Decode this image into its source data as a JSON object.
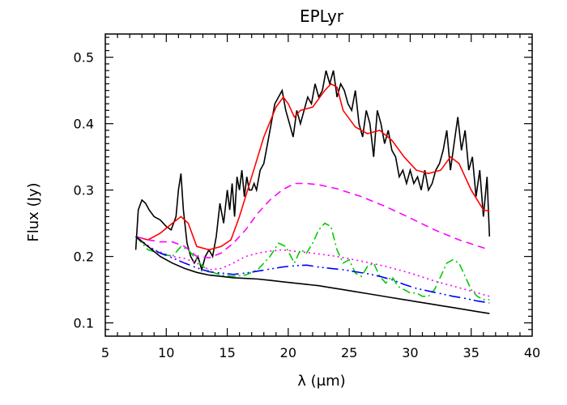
{
  "chart_data": {
    "type": "line",
    "title": "EPLyr",
    "xlabel": "λ (μm)",
    "ylabel": "Flux (Jy)",
    "xlim": [
      5,
      40
    ],
    "ylim": [
      0.08,
      0.535
    ],
    "x_ticks": [
      5,
      10,
      15,
      20,
      25,
      30,
      35,
      40
    ],
    "y_ticks": [
      0.1,
      0.2,
      0.3,
      0.4,
      0.5
    ],
    "x_tick_labels": [
      "5",
      "10",
      "15",
      "20",
      "25",
      "30",
      "35",
      "40"
    ],
    "y_tick_labels": [
      "0.1",
      "0.2",
      "0.3",
      "0.4",
      "0.5"
    ],
    "grid": false,
    "legend": "none",
    "series": [
      {
        "color": "#000000",
        "dash": "solid",
        "x": [
          7.5,
          7.7,
          8.0,
          8.3,
          8.6,
          9.0,
          9.5,
          10.0,
          10.4,
          10.8,
          11.0,
          11.2,
          11.4,
          11.7,
          12.0,
          12.3,
          12.6,
          12.9,
          13.2,
          13.5,
          13.8,
          14.1,
          14.4,
          14.7,
          15.0,
          15.2,
          15.4,
          15.6,
          15.8,
          16.0,
          16.2,
          16.4,
          16.6,
          16.8,
          17.0,
          17.2,
          17.4,
          17.7,
          18.0,
          18.3,
          18.6,
          18.9,
          19.2,
          19.5,
          19.8,
          20.1,
          20.4,
          20.7,
          21.0,
          21.3,
          21.6,
          21.9,
          22.2,
          22.5,
          22.8,
          23.1,
          23.4,
          23.7,
          24.0,
          24.3,
          24.6,
          24.9,
          25.2,
          25.5,
          25.8,
          26.1,
          26.4,
          26.7,
          27.0,
          27.3,
          27.6,
          27.9,
          28.2,
          28.5,
          28.8,
          29.1,
          29.4,
          29.7,
          30.0,
          30.3,
          30.6,
          30.9,
          31.2,
          31.5,
          31.8,
          32.1,
          32.4,
          32.7,
          33.0,
          33.3,
          33.6,
          33.9,
          34.2,
          34.5,
          34.8,
          35.1,
          35.4,
          35.7,
          36.0,
          36.3,
          36.5
        ],
        "y": [
          0.21,
          0.27,
          0.285,
          0.28,
          0.27,
          0.26,
          0.255,
          0.245,
          0.24,
          0.26,
          0.3,
          0.325,
          0.27,
          0.22,
          0.2,
          0.19,
          0.2,
          0.18,
          0.2,
          0.21,
          0.2,
          0.23,
          0.28,
          0.25,
          0.3,
          0.27,
          0.31,
          0.26,
          0.32,
          0.3,
          0.33,
          0.29,
          0.32,
          0.3,
          0.3,
          0.31,
          0.3,
          0.33,
          0.34,
          0.37,
          0.4,
          0.43,
          0.44,
          0.45,
          0.42,
          0.4,
          0.38,
          0.42,
          0.4,
          0.42,
          0.44,
          0.43,
          0.46,
          0.44,
          0.45,
          0.48,
          0.46,
          0.48,
          0.44,
          0.46,
          0.45,
          0.43,
          0.42,
          0.45,
          0.4,
          0.38,
          0.42,
          0.4,
          0.35,
          0.42,
          0.4,
          0.37,
          0.39,
          0.36,
          0.35,
          0.32,
          0.33,
          0.31,
          0.33,
          0.31,
          0.32,
          0.3,
          0.33,
          0.3,
          0.31,
          0.33,
          0.34,
          0.36,
          0.39,
          0.33,
          0.37,
          0.41,
          0.36,
          0.39,
          0.33,
          0.35,
          0.29,
          0.33,
          0.26,
          0.32,
          0.23
        ]
      },
      {
        "color": "#ff0000",
        "dash": "solid",
        "x": [
          7.5,
          8.5,
          9.5,
          10.5,
          11.2,
          11.8,
          12.5,
          13.5,
          14.5,
          15.3,
          16.0,
          17.0,
          18.0,
          19.0,
          19.6,
          20.0,
          20.5,
          21.0,
          22.0,
          23.0,
          23.5,
          24.0,
          24.5,
          25.5,
          26.5,
          27.5,
          28.5,
          29.5,
          30.5,
          31.5,
          32.5,
          33.3,
          34.0,
          35.0,
          36.0,
          36.5
        ],
        "y": [
          0.23,
          0.225,
          0.235,
          0.25,
          0.26,
          0.25,
          0.215,
          0.21,
          0.215,
          0.225,
          0.26,
          0.32,
          0.38,
          0.425,
          0.44,
          0.43,
          0.41,
          0.42,
          0.425,
          0.45,
          0.46,
          0.455,
          0.42,
          0.395,
          0.385,
          0.39,
          0.375,
          0.35,
          0.33,
          0.325,
          0.33,
          0.35,
          0.34,
          0.3,
          0.27,
          0.268
        ]
      },
      {
        "color": "#ff00ff",
        "dash": "dashed",
        "x": [
          7.5,
          8.5,
          9.5,
          10.5,
          11.5,
          12.5,
          13.5,
          14.5,
          15.5,
          16.5,
          17.5,
          18.5,
          19.5,
          20.5,
          21.5,
          22.5,
          24.0,
          26.0,
          28.0,
          30.0,
          32.0,
          34.0,
          36.5
        ],
        "y": [
          0.23,
          0.225,
          0.222,
          0.222,
          0.215,
          0.2,
          0.198,
          0.205,
          0.22,
          0.24,
          0.265,
          0.285,
          0.3,
          0.31,
          0.31,
          0.308,
          0.302,
          0.29,
          0.275,
          0.258,
          0.24,
          0.225,
          0.21
        ]
      },
      {
        "color": "#ff00ff",
        "dash": "dotted",
        "x": [
          7.5,
          9.0,
          10.5,
          11.5,
          12.5,
          13.5,
          14.5,
          15.5,
          16.5,
          17.5,
          18.5,
          19.5,
          20.5,
          22.0,
          24.0,
          26.0,
          28.0,
          30.0,
          32.0,
          34.0,
          36.5
        ],
        "y": [
          0.23,
          0.21,
          0.2,
          0.197,
          0.19,
          0.18,
          0.182,
          0.19,
          0.2,
          0.205,
          0.208,
          0.21,
          0.208,
          0.205,
          0.2,
          0.193,
          0.185,
          0.175,
          0.163,
          0.153,
          0.14
        ]
      },
      {
        "color": "#00cc00",
        "dash": "dashdot",
        "x": [
          7.5,
          8.5,
          9.5,
          10.5,
          11.2,
          11.8,
          12.5,
          13.0,
          13.5,
          14.5,
          15.5,
          16.5,
          17.5,
          18.5,
          19.2,
          19.8,
          20.5,
          21.0,
          21.5,
          22.0,
          22.5,
          23.0,
          23.5,
          24.0,
          24.5,
          25.0,
          25.5,
          26.0,
          26.5,
          27.0,
          27.5,
          28.0,
          28.5,
          29.0,
          29.5,
          30.0,
          30.5,
          31.0,
          31.5,
          32.0,
          32.5,
          33.0,
          33.5,
          34.0,
          34.5,
          35.0,
          35.5,
          36.0,
          36.5
        ],
        "y": [
          0.23,
          0.21,
          0.205,
          0.2,
          0.215,
          0.21,
          0.195,
          0.185,
          0.178,
          0.172,
          0.17,
          0.172,
          0.18,
          0.2,
          0.22,
          0.215,
          0.19,
          0.21,
          0.205,
          0.22,
          0.24,
          0.25,
          0.245,
          0.21,
          0.19,
          0.195,
          0.175,
          0.17,
          0.185,
          0.19,
          0.17,
          0.16,
          0.17,
          0.155,
          0.15,
          0.145,
          0.145,
          0.14,
          0.14,
          0.15,
          0.17,
          0.19,
          0.195,
          0.19,
          0.17,
          0.15,
          0.14,
          0.135,
          0.135
        ]
      },
      {
        "color": "#0000ff",
        "dash": "longdash",
        "x": [
          7.5,
          8.5,
          9.5,
          10.5,
          11.5,
          12.5,
          13.5,
          14.5,
          15.5,
          16.5,
          17.5,
          18.5,
          19.5,
          20.5,
          21.5,
          22.5,
          23.5,
          24.5,
          25.5,
          26.5,
          27.5,
          28.5,
          29.5,
          30.5,
          31.5,
          32.5,
          33.5,
          34.5,
          35.5,
          36.5
        ],
        "y": [
          0.23,
          0.215,
          0.205,
          0.198,
          0.19,
          0.183,
          0.177,
          0.175,
          0.173,
          0.175,
          0.178,
          0.181,
          0.184,
          0.186,
          0.187,
          0.184,
          0.182,
          0.18,
          0.177,
          0.174,
          0.17,
          0.165,
          0.158,
          0.152,
          0.148,
          0.144,
          0.14,
          0.137,
          0.133,
          0.13
        ]
      },
      {
        "color": "#000000",
        "dash": "solid",
        "x": [
          7.5,
          8.5,
          9.5,
          10.5,
          11.5,
          12.5,
          13.5,
          14.5,
          15.5,
          16.5,
          17.5,
          18.5,
          19.5,
          20.5,
          21.5,
          22.5,
          23.5,
          24.5,
          25.5,
          26.5,
          27.5,
          28.5,
          29.5,
          30.5,
          31.5,
          32.5,
          33.5,
          34.5,
          35.5,
          36.5
        ],
        "y": [
          0.23,
          0.215,
          0.2,
          0.19,
          0.182,
          0.176,
          0.172,
          0.17,
          0.168,
          0.167,
          0.166,
          0.164,
          0.162,
          0.16,
          0.158,
          0.156,
          0.153,
          0.15,
          0.147,
          0.144,
          0.141,
          0.138,
          0.135,
          0.132,
          0.129,
          0.126,
          0.123,
          0.12,
          0.117,
          0.114
        ]
      }
    ]
  }
}
